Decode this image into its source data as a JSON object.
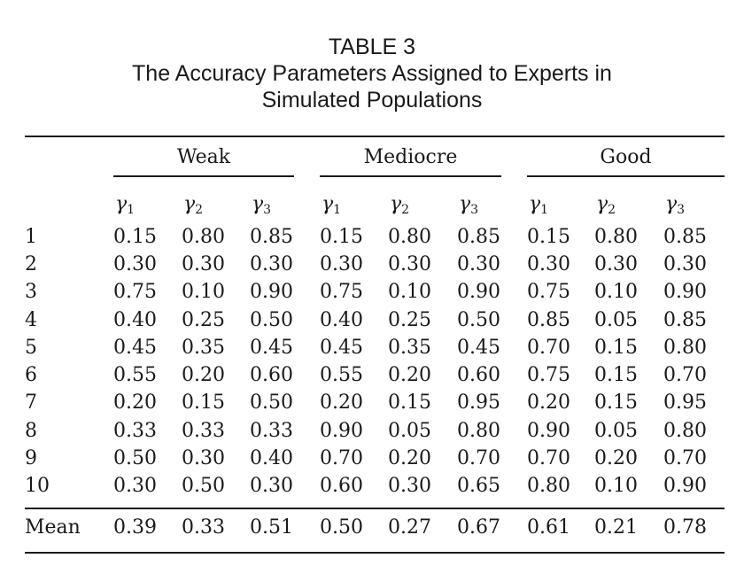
{
  "caption": {
    "label": "TABLE 3",
    "line1": "The Accuracy Parameters Assigned to Experts in",
    "line2": "Simulated Populations"
  },
  "table": {
    "groups": [
      "Weak",
      "Mediocre",
      "Good"
    ],
    "subheader_symbol": "γ",
    "subheader_indices": [
      "1",
      "2",
      "3"
    ],
    "rows": [
      {
        "label": "1",
        "values": [
          "0.15",
          "0.80",
          "0.85",
          "0.15",
          "0.80",
          "0.85",
          "0.15",
          "0.80",
          "0.85"
        ]
      },
      {
        "label": "2",
        "values": [
          "0.30",
          "0.30",
          "0.30",
          "0.30",
          "0.30",
          "0.30",
          "0.30",
          "0.30",
          "0.30"
        ]
      },
      {
        "label": "3",
        "values": [
          "0.75",
          "0.10",
          "0.90",
          "0.75",
          "0.10",
          "0.90",
          "0.75",
          "0.10",
          "0.90"
        ]
      },
      {
        "label": "4",
        "values": [
          "0.40",
          "0.25",
          "0.50",
          "0.40",
          "0.25",
          "0.50",
          "0.85",
          "0.05",
          "0.85"
        ]
      },
      {
        "label": "5",
        "values": [
          "0.45",
          "0.35",
          "0.45",
          "0.45",
          "0.35",
          "0.45",
          "0.70",
          "0.15",
          "0.80"
        ]
      },
      {
        "label": "6",
        "values": [
          "0.55",
          "0.20",
          "0.60",
          "0.55",
          "0.20",
          "0.60",
          "0.75",
          "0.15",
          "0.70"
        ]
      },
      {
        "label": "7",
        "values": [
          "0.20",
          "0.15",
          "0.50",
          "0.20",
          "0.15",
          "0.95",
          "0.20",
          "0.15",
          "0.95"
        ]
      },
      {
        "label": "8",
        "values": [
          "0.33",
          "0.33",
          "0.33",
          "0.90",
          "0.05",
          "0.80",
          "0.90",
          "0.05",
          "0.80"
        ]
      },
      {
        "label": "9",
        "values": [
          "0.50",
          "0.30",
          "0.40",
          "0.70",
          "0.20",
          "0.70",
          "0.70",
          "0.20",
          "0.70"
        ]
      },
      {
        "label": "10",
        "values": [
          "0.30",
          "0.50",
          "0.30",
          "0.60",
          "0.30",
          "0.65",
          "0.80",
          "0.10",
          "0.90"
        ]
      }
    ],
    "mean": {
      "label": "Mean",
      "values": [
        "0.39",
        "0.33",
        "0.51",
        "0.50",
        "0.27",
        "0.67",
        "0.61",
        "0.21",
        "0.78"
      ]
    }
  }
}
